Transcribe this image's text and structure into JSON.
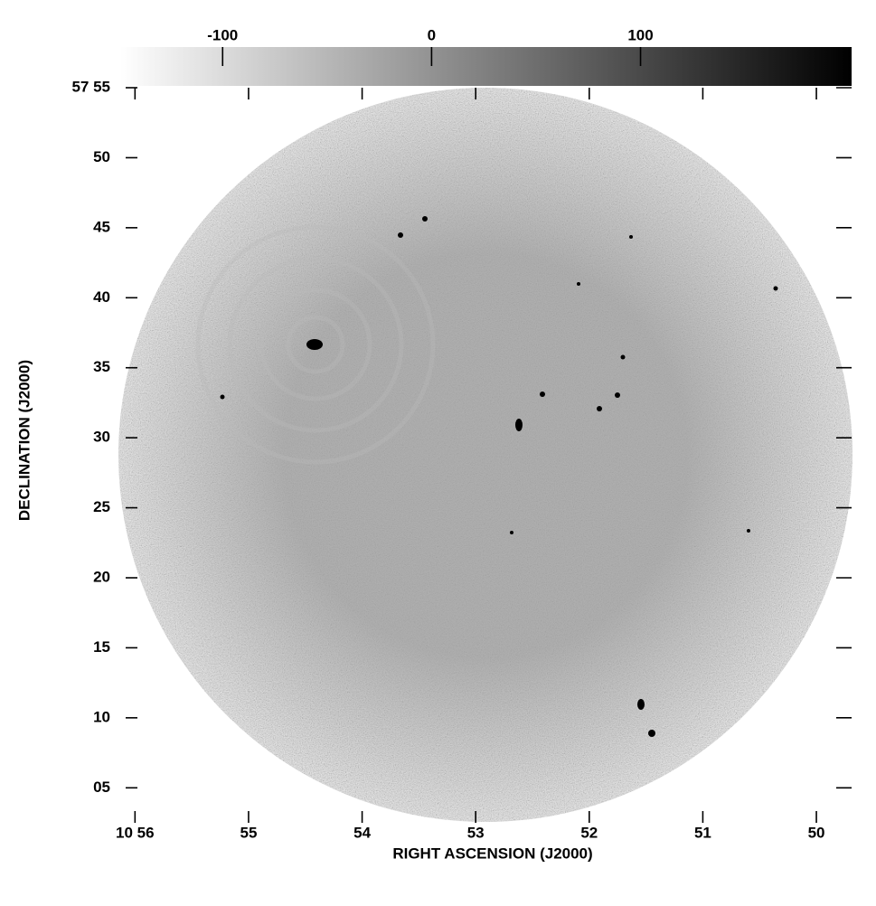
{
  "chart_data": {
    "type": "image",
    "xlabel": "RIGHT ASCENSION (J2000)",
    "ylabel": "DECLINATION (J2000)",
    "xlim": [
      56.13,
      49.69
    ],
    "xticks": [
      {
        "value": 56,
        "label": "10 56"
      },
      55,
      54,
      53,
      52,
      51,
      50
    ],
    "ylim": [
      2.5,
      55
    ],
    "yticks": [
      {
        "value": 55,
        "label": "57 55"
      },
      50,
      45,
      40,
      35,
      30,
      25,
      20,
      15,
      10,
      {
        "value": 5,
        "label": "05"
      }
    ],
    "colorbar": {
      "lim": [
        -149,
        201
      ],
      "ticks": [
        -100,
        0,
        100
      ],
      "colors": [
        "#ffffff",
        "#000000"
      ]
    }
  }
}
